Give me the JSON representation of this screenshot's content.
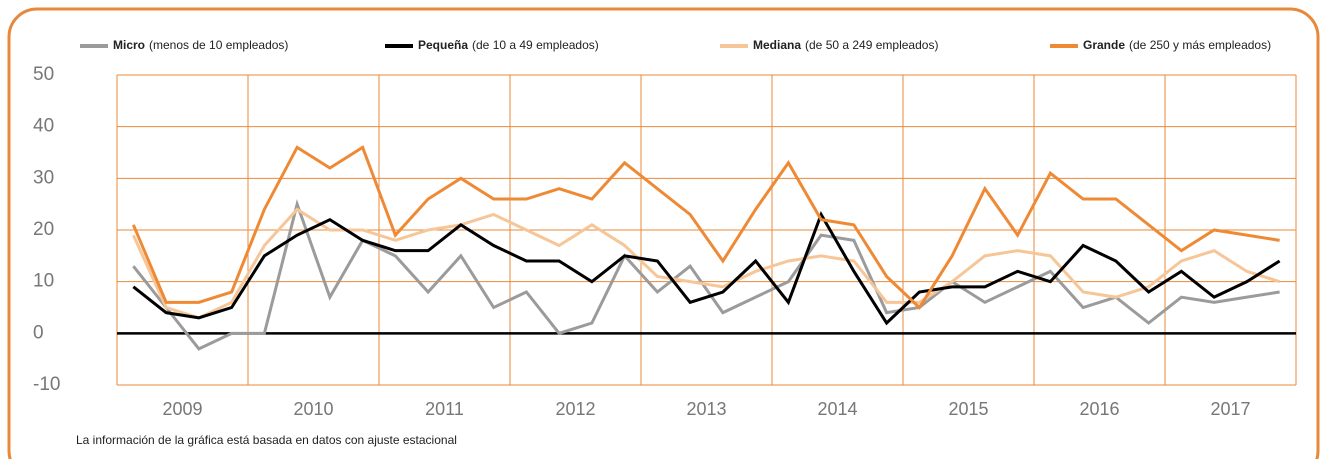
{
  "chart_data": {
    "type": "line",
    "footnote": "La información de la gráfica está basada en datos con ajuste estacional",
    "categories": [
      "2009",
      null,
      null,
      null,
      "2010",
      null,
      null,
      null,
      "2011",
      null,
      null,
      null,
      "2012",
      null,
      null,
      null,
      "2013",
      null,
      null,
      null,
      "2014",
      null,
      null,
      null,
      "2015",
      null,
      null,
      null,
      "2016",
      null,
      null,
      null,
      "2017",
      null,
      null,
      null
    ],
    "series": [
      {
        "name": "Micro",
        "description": "(menos de 10 empleados)",
        "color": "#9b9b9b",
        "values": [
          13,
          5,
          -3,
          0,
          0,
          25,
          7,
          18,
          15,
          8,
          15,
          5,
          8,
          0,
          2,
          15,
          8,
          13,
          4,
          7,
          10,
          19,
          18,
          4,
          5,
          10,
          6,
          9,
          12,
          5,
          7,
          2,
          7,
          6,
          7,
          8
        ]
      },
      {
        "name": "Mediana",
        "description": "(de 50 a 249 empleados)",
        "color": "#f6c698",
        "values": [
          19,
          5,
          3,
          6,
          17,
          24,
          20,
          20,
          18,
          20,
          21,
          23,
          20,
          17,
          21,
          17,
          11,
          10,
          9,
          12,
          14,
          15,
          14,
          6,
          6,
          10,
          15,
          16,
          15,
          8,
          7,
          9,
          14,
          16,
          12,
          10
        ]
      },
      {
        "name": "Pequeña",
        "description": "(de 10 a 49 empleados)",
        "color": "#000000",
        "values": [
          9,
          4,
          3,
          5,
          15,
          19,
          22,
          18,
          16,
          16,
          21,
          17,
          14,
          14,
          10,
          15,
          14,
          6,
          8,
          14,
          6,
          23,
          12,
          2,
          8,
          9,
          9,
          12,
          10,
          17,
          14,
          8,
          12,
          7,
          10,
          14
        ]
      },
      {
        "name": "Grande",
        "description": "(de 250 y más empleados)",
        "color": "#ee8a35",
        "values": [
          21,
          6,
          6,
          8,
          24,
          36,
          32,
          36,
          19,
          26,
          30,
          26,
          26,
          28,
          26,
          33,
          28,
          23,
          14,
          24,
          33,
          22,
          21,
          11,
          5,
          15,
          28,
          19,
          31,
          26,
          26,
          21,
          16,
          20,
          19,
          18
        ]
      }
    ],
    "ylim": [
      -10,
      50
    ],
    "yticks": [
      -10,
      0,
      10,
      20,
      30,
      40,
      50
    ],
    "grid": true,
    "grid_color": "#e8893a",
    "zero_line": true
  }
}
